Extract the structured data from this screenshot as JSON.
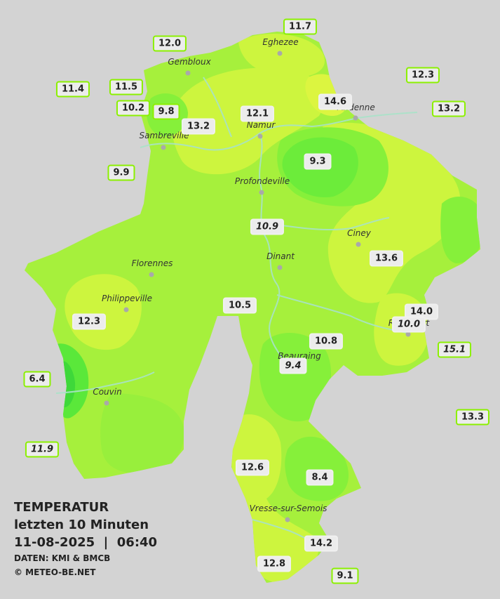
{
  "towns": [
    {
      "name": "Eghezee"
    },
    {
      "name": "Gembloux"
    },
    {
      "name": "Andenne"
    },
    {
      "name": "Namur"
    },
    {
      "name": "Sambreville"
    },
    {
      "name": "Profondeville"
    },
    {
      "name": "Ciney"
    },
    {
      "name": "Dinant"
    },
    {
      "name": "Florennes"
    },
    {
      "name": "Philippeville"
    },
    {
      "name": "Rochefort"
    },
    {
      "name": "Beauraing"
    },
    {
      "name": "Couvin"
    },
    {
      "name": "Vresse-sur-Semois"
    }
  ],
  "stations": [
    {
      "value": "11.7",
      "kind": "outside"
    },
    {
      "value": "12.0",
      "kind": "outside"
    },
    {
      "value": "12.3",
      "kind": "outside"
    },
    {
      "value": "11.4",
      "kind": "outside"
    },
    {
      "value": "11.5",
      "kind": "outside"
    },
    {
      "value": "10.2",
      "kind": "outside"
    },
    {
      "value": "9.8",
      "kind": "outside"
    },
    {
      "value": "14.6",
      "kind": "inside"
    },
    {
      "value": "13.2",
      "kind": "outside"
    },
    {
      "value": "12.1",
      "kind": "inside"
    },
    {
      "value": "13.2",
      "kind": "inside"
    },
    {
      "value": "9.9",
      "kind": "outside"
    },
    {
      "value": "9.3",
      "kind": "inside"
    },
    {
      "value": "10.9",
      "kind": "inside",
      "italic": true
    },
    {
      "value": "13.6",
      "kind": "inside"
    },
    {
      "value": "10.5",
      "kind": "inside"
    },
    {
      "value": "14.0",
      "kind": "inside"
    },
    {
      "value": "10.0",
      "kind": "inside",
      "italic": true
    },
    {
      "value": "12.3",
      "kind": "inside"
    },
    {
      "value": "10.8",
      "kind": "inside"
    },
    {
      "value": "15.1",
      "kind": "outside",
      "italic": true
    },
    {
      "value": "9.4",
      "kind": "inside",
      "italic": true
    },
    {
      "value": "6.4",
      "kind": "outside"
    },
    {
      "value": "13.3",
      "kind": "outside"
    },
    {
      "value": "11.9",
      "kind": "outside",
      "italic": true
    },
    {
      "value": "12.6",
      "kind": "inside"
    },
    {
      "value": "8.4",
      "kind": "inside"
    },
    {
      "value": "14.2",
      "kind": "inside"
    },
    {
      "value": "12.8",
      "kind": "inside"
    },
    {
      "value": "9.1",
      "kind": "outside"
    }
  ],
  "legend": {
    "title": "TEMPERATUR",
    "subtitle": "letzten 10 Minuten",
    "datetime": "11-08-2025  |  06:40",
    "source": "DATEN: KMI & BMCB",
    "copyright": "© METEO-BE.NET"
  },
  "colors": {
    "background": "#d3d3d3",
    "province_base": "#a6f03c",
    "warm_zone": "#cdf53e",
    "hot_zone": "#dcf540",
    "cool_zone": "#86f03a",
    "cold_zone": "#5ae83a",
    "river": "#a8e2c8",
    "outside_badge_border": "#8bf000"
  }
}
